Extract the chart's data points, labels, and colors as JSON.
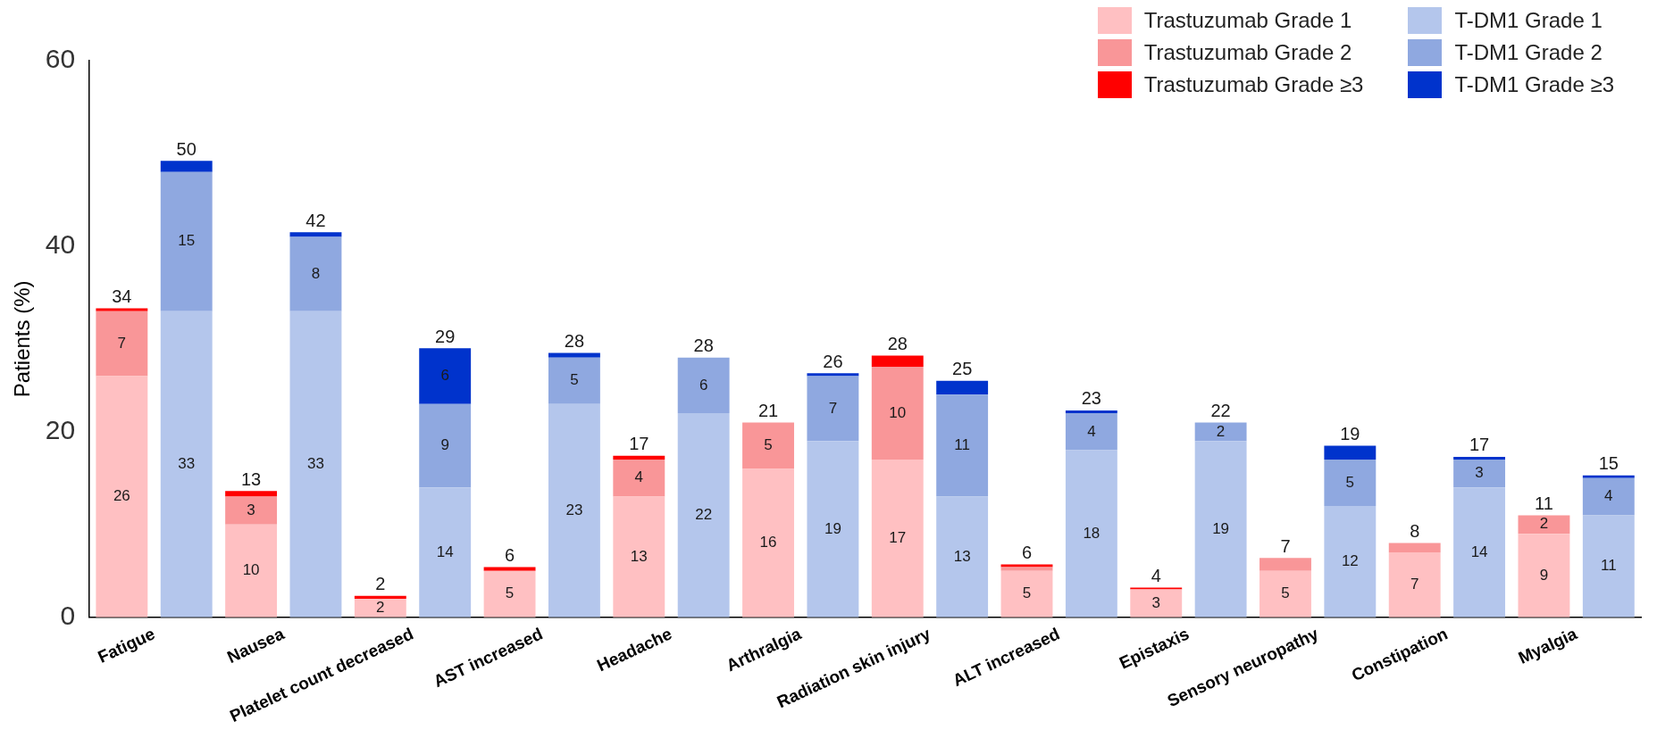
{
  "chart_data": {
    "type": "bar",
    "stacked": true,
    "ylabel": "Patients (%)",
    "categories": [
      "Fatigue",
      null,
      "Nausea",
      null,
      "Platelet count decreased",
      null,
      "AST increased",
      null,
      "Headache",
      null,
      "Arthralgia",
      null,
      "Radiation skin injury",
      null,
      "ALT increased",
      null,
      "Epistaxis",
      null,
      "Sensory neuropathy",
      null,
      "Constipation",
      null,
      "Myalgia",
      null
    ],
    "ylim": [
      0,
      60
    ],
    "yticks": [
      0,
      20,
      40,
      60
    ],
    "grid": false,
    "legend": "top right",
    "series": [
      {
        "name": "Trastuzumab Grade 1",
        "color": "#ffc0c2",
        "values": [
          26,
          null,
          10,
          null,
          2,
          null,
          5,
          null,
          13,
          null,
          16,
          null,
          17,
          null,
          5,
          null,
          3,
          null,
          5,
          null,
          7,
          null,
          9,
          null
        ],
        "value_labels": [
          "26",
          null,
          "10",
          null,
          "2",
          null,
          "5",
          null,
          "13",
          null,
          "16",
          null,
          "17",
          null,
          "5",
          null,
          "3",
          null,
          "5",
          null,
          "7",
          null,
          "9",
          null
        ]
      },
      {
        "name": "Trastuzumab Grade 2",
        "color": "#f99698",
        "values": [
          7,
          null,
          3,
          null,
          null,
          null,
          null,
          null,
          4,
          null,
          5,
          null,
          10,
          null,
          0.4,
          null,
          null,
          null,
          1.4,
          null,
          1,
          null,
          2,
          null
        ],
        "value_labels": [
          "7",
          null,
          "3",
          null,
          null,
          null,
          null,
          null,
          "4",
          null,
          "5",
          null,
          "10",
          null,
          null,
          null,
          null,
          null,
          null,
          null,
          null,
          null,
          "2",
          null
        ]
      },
      {
        "name": "Trastuzumab Grade ≥3",
        "color": "#ff0000",
        "values": [
          0.3,
          null,
          0.6,
          null,
          0.3,
          null,
          0.4,
          null,
          0.4,
          null,
          null,
          null,
          1.2,
          null,
          0.3,
          null,
          0.2,
          null,
          null,
          null,
          null,
          null,
          null,
          null
        ]
      },
      {
        "name": "T-DM1 Grade 1",
        "color": "#b4c6ec",
        "values": [
          null,
          33,
          null,
          33,
          null,
          14,
          null,
          23,
          null,
          22,
          null,
          19,
          null,
          13,
          null,
          18,
          null,
          19,
          null,
          12,
          null,
          14,
          null,
          11
        ],
        "value_labels": [
          null,
          "33",
          null,
          "33",
          null,
          "14",
          null,
          "23",
          null,
          "22",
          null,
          "19",
          null,
          "13",
          null,
          "18",
          null,
          "19",
          null,
          "12",
          null,
          "14",
          null,
          "11"
        ]
      },
      {
        "name": "T-DM1 Grade 2",
        "color": "#8fa8e0",
        "values": [
          null,
          15,
          null,
          8,
          null,
          9,
          null,
          5,
          null,
          6,
          null,
          7,
          null,
          11,
          null,
          4,
          null,
          2,
          null,
          5,
          null,
          3,
          null,
          4
        ],
        "value_labels": [
          null,
          "15",
          null,
          "8",
          null,
          "9",
          null,
          "5",
          null,
          "6",
          null,
          "7",
          null,
          "11",
          null,
          "4",
          null,
          "2",
          null,
          "5",
          null,
          "3",
          null,
          "4"
        ]
      },
      {
        "name": "T-DM1 Grade ≥3",
        "color": "#0033cc",
        "values": [
          null,
          1.2,
          null,
          0.5,
          null,
          6,
          null,
          0.5,
          null,
          null,
          null,
          0.3,
          null,
          1.5,
          null,
          0.3,
          null,
          null,
          null,
          1.5,
          null,
          0.3,
          null,
          0.3
        ],
        "value_labels": [
          null,
          null,
          null,
          null,
          null,
          "6",
          null,
          null,
          null,
          null,
          null,
          null,
          null,
          null,
          null,
          null,
          null,
          null,
          null,
          null,
          null,
          null,
          null,
          null
        ]
      }
    ],
    "totals": [
      "34",
      "50",
      "13",
      "42",
      "2",
      "29",
      "6",
      "28",
      "17",
      "28",
      "21",
      "26",
      "28",
      "25",
      "6",
      "23",
      "4",
      "22",
      "7",
      "19",
      "8",
      "17",
      "11",
      "15"
    ]
  }
}
